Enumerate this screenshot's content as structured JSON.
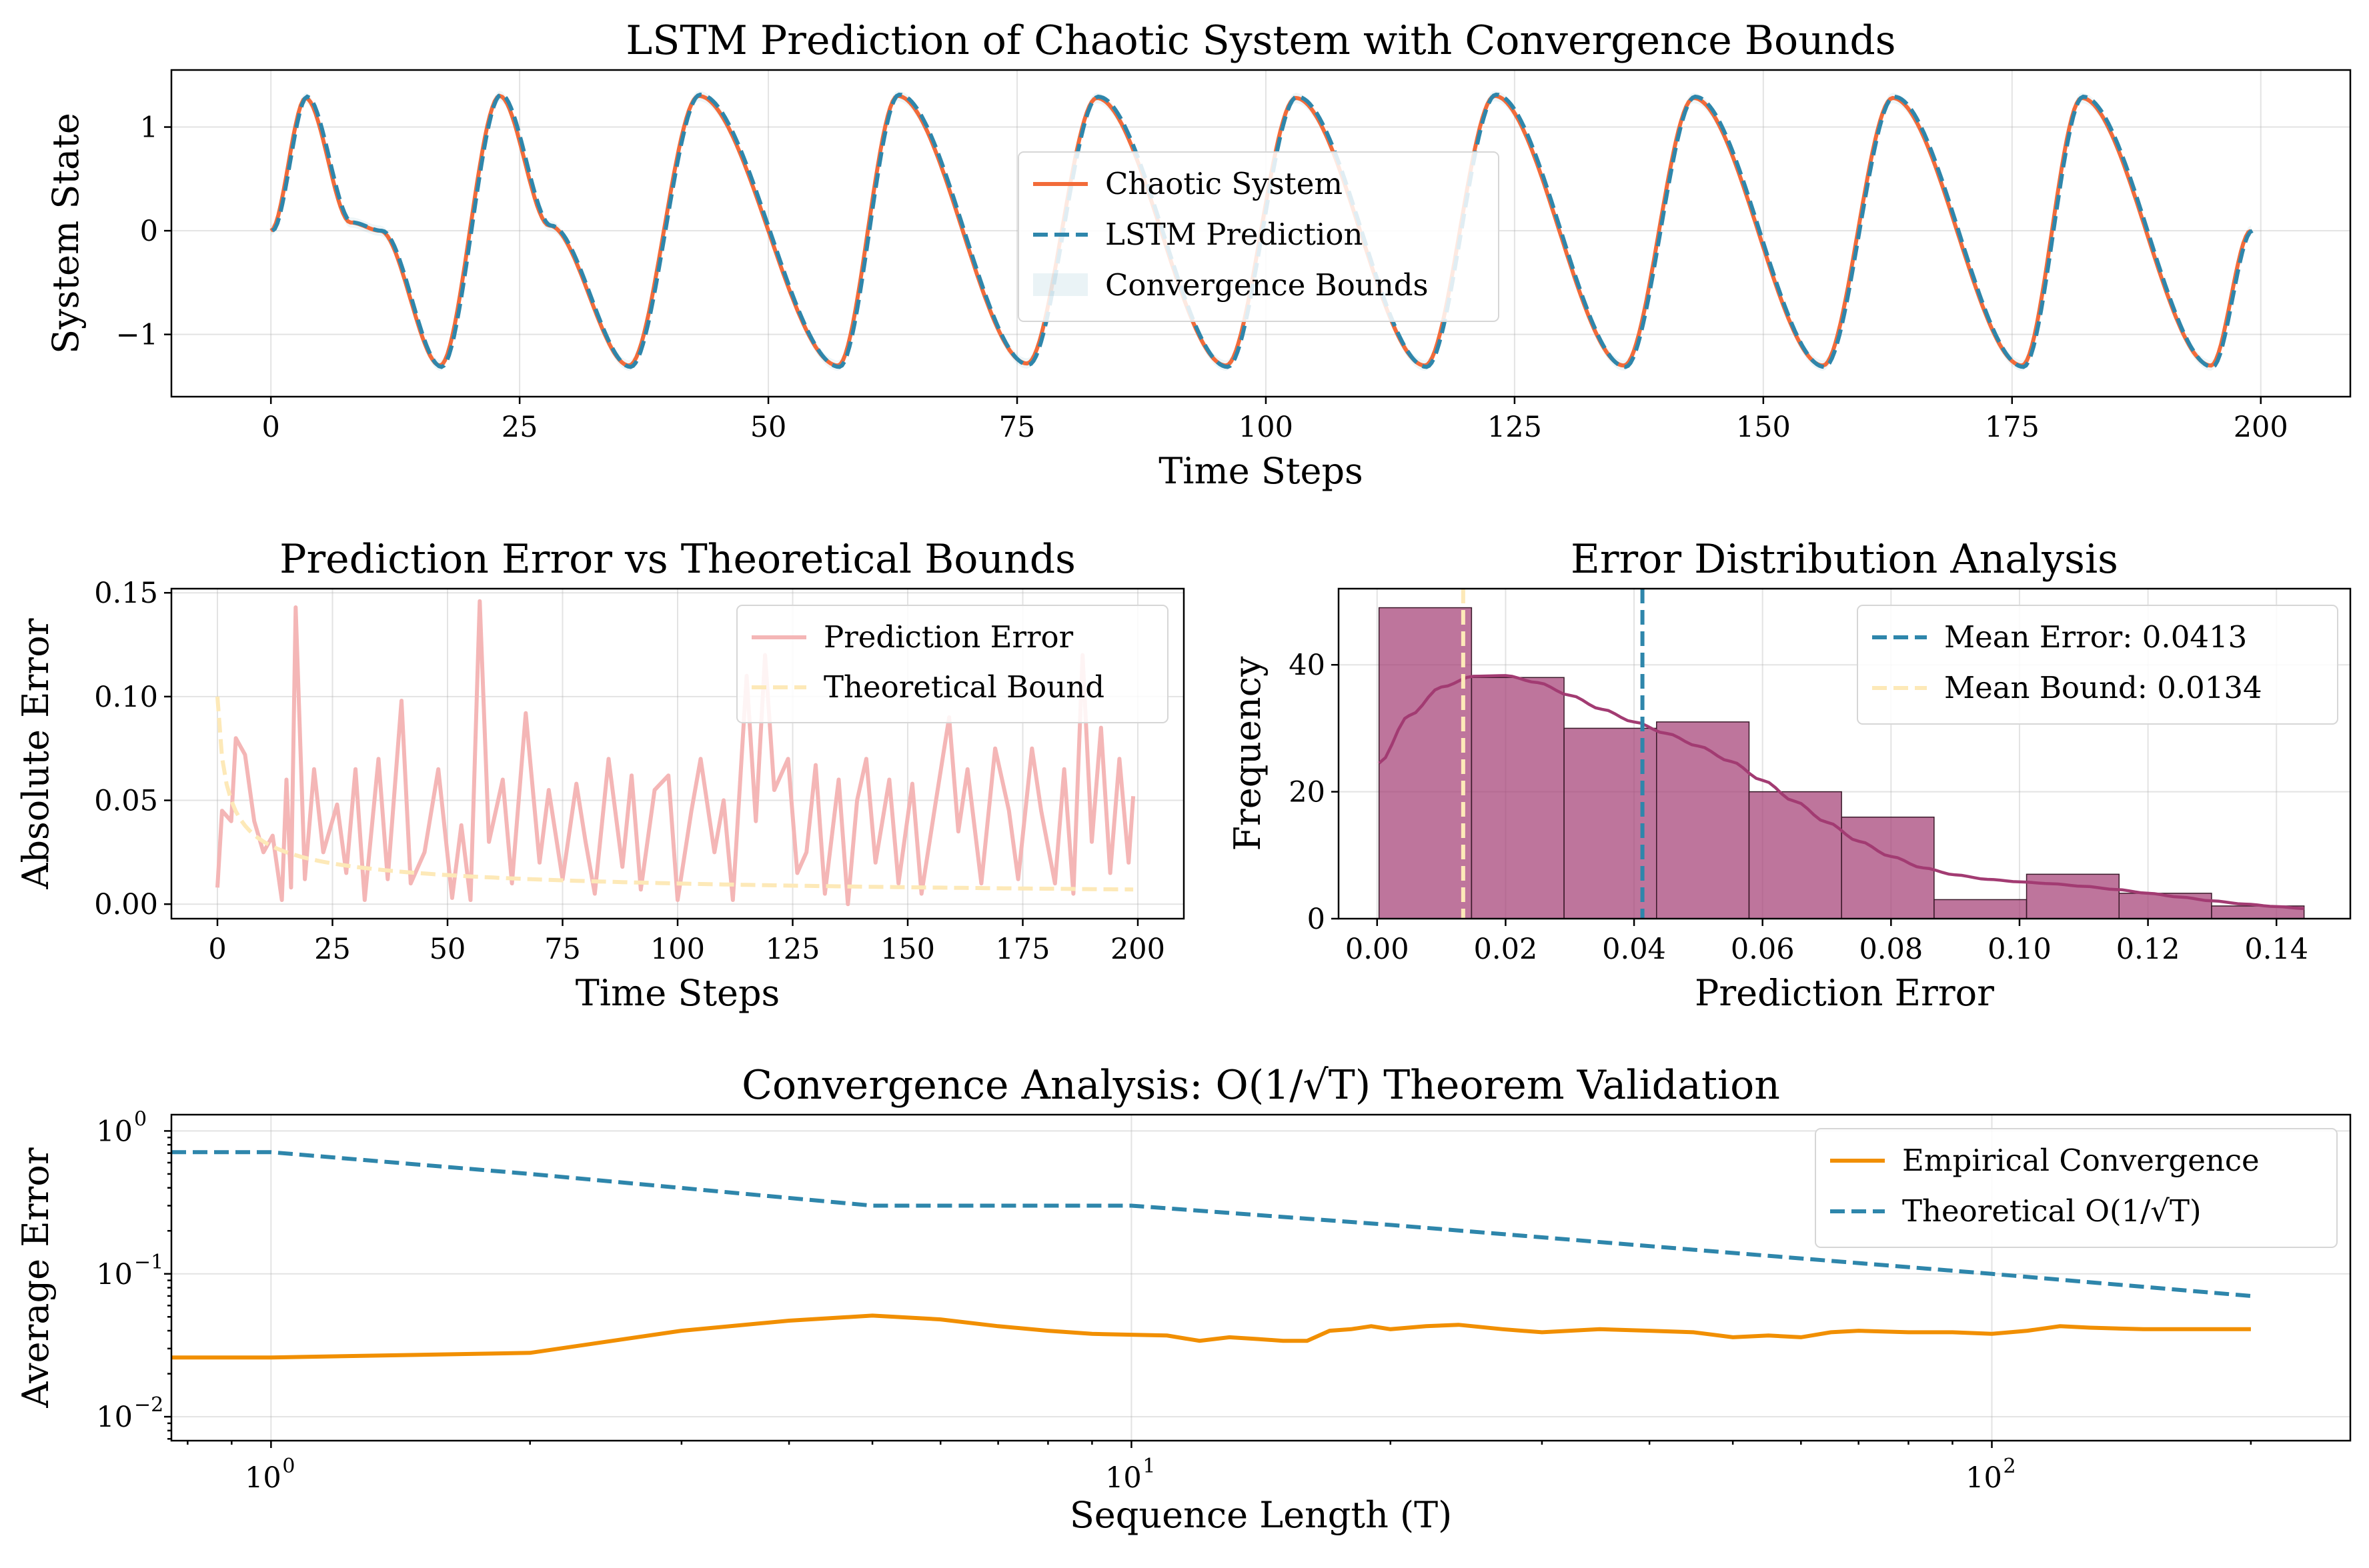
{
  "figure": {
    "background": "#ffffff"
  },
  "chart_data": [
    {
      "id": "top",
      "type": "line",
      "title": "LSTM Prediction of Chaotic System with Convergence Bounds",
      "xlabel": "Time Steps",
      "ylabel": "System State",
      "xlim": [
        -10,
        209
      ],
      "ylim": [
        -1.6,
        1.55
      ],
      "xticks": [
        0,
        25,
        50,
        75,
        100,
        125,
        150,
        175,
        200
      ],
      "yticks": [
        {
          "v": -1,
          "label": "−1"
        },
        {
          "v": 0,
          "label": "0"
        },
        {
          "v": 1,
          "label": "1"
        }
      ],
      "grid": true,
      "legend_position": "center-right",
      "series": [
        {
          "name": "Chaotic System",
          "color": "#f26b3a",
          "style": "solid",
          "n_points": 200,
          "description_of_shape": "periodic oscillation, period ~19.8 steps, peaks ~1.25-1.3, troughs ~-1.3, short plateau near 0 after each peak",
          "key_points": [
            [
              0,
              0.0
            ],
            [
              3.5,
              1.28
            ],
            [
              8,
              0.08
            ],
            [
              11,
              0.0
            ],
            [
              17,
              -1.3
            ],
            [
              23,
              1.3
            ],
            [
              28,
              0.05
            ],
            [
              36,
              -1.3
            ],
            [
              43,
              1.3
            ],
            [
              57,
              -1.3
            ],
            [
              63,
              1.3
            ],
            [
              76,
              -1.28
            ],
            [
              83,
              1.28
            ],
            [
              96,
              -1.3
            ],
            [
              103,
              1.28
            ],
            [
              116,
              -1.3
            ],
            [
              123,
              1.3
            ],
            [
              136,
              -1.3
            ],
            [
              143,
              1.28
            ],
            [
              156,
              -1.3
            ],
            [
              163,
              1.28
            ],
            [
              176,
              -1.3
            ],
            [
              182,
              1.28
            ],
            [
              195,
              -1.3
            ],
            [
              199,
              0.0
            ]
          ]
        },
        {
          "name": "LSTM Prediction",
          "color": "#2e86ab",
          "style": "dashed"
        },
        {
          "name": "Convergence Bounds",
          "color": "#2e86ab",
          "style": "band",
          "opacity": 0.08
        }
      ]
    },
    {
      "id": "middle-left",
      "type": "line",
      "title": "Prediction Error vs Theoretical Bounds",
      "xlabel": "Time Steps",
      "ylabel": "Absolute Error",
      "xlim": [
        -10,
        210
      ],
      "ylim": [
        -0.007,
        0.152
      ],
      "xticks": [
        0,
        25,
        50,
        75,
        100,
        125,
        150,
        175,
        200
      ],
      "yticks": [
        {
          "v": 0.0,
          "label": "0.00"
        },
        {
          "v": 0.05,
          "label": "0.05"
        },
        {
          "v": 0.1,
          "label": "0.10"
        },
        {
          "v": 0.15,
          "label": "0.15"
        }
      ],
      "grid": true,
      "legend_position": "upper right",
      "series": [
        {
          "name": "Prediction Error",
          "color": "#f4b6b6",
          "style": "solid",
          "key_points": [
            [
              0,
              0.008
            ],
            [
              1,
              0.045
            ],
            [
              3,
              0.04
            ],
            [
              4,
              0.08
            ],
            [
              6,
              0.072
            ],
            [
              8,
              0.04
            ],
            [
              10,
              0.025
            ],
            [
              12,
              0.033
            ],
            [
              14,
              0.002
            ],
            [
              15,
              0.06
            ],
            [
              16,
              0.008
            ],
            [
              17,
              0.143
            ],
            [
              19,
              0.012
            ],
            [
              21,
              0.065
            ],
            [
              23,
              0.025
            ],
            [
              26,
              0.048
            ],
            [
              28,
              0.015
            ],
            [
              30,
              0.065
            ],
            [
              32,
              0.002
            ],
            [
              35,
              0.07
            ],
            [
              37,
              0.012
            ],
            [
              40,
              0.098
            ],
            [
              42,
              0.01
            ],
            [
              45,
              0.025
            ],
            [
              48,
              0.065
            ],
            [
              51,
              0.003
            ],
            [
              53,
              0.038
            ],
            [
              55,
              0.002
            ],
            [
              57,
              0.146
            ],
            [
              59,
              0.03
            ],
            [
              62,
              0.06
            ],
            [
              64,
              0.01
            ],
            [
              67,
              0.092
            ],
            [
              70,
              0.02
            ],
            [
              72,
              0.055
            ],
            [
              75,
              0.012
            ],
            [
              78,
              0.058
            ],
            [
              80,
              0.03
            ],
            [
              82,
              0.005
            ],
            [
              85,
              0.07
            ],
            [
              88,
              0.018
            ],
            [
              90,
              0.062
            ],
            [
              92,
              0.007
            ],
            [
              95,
              0.055
            ],
            [
              98,
              0.062
            ],
            [
              100,
              0.002
            ],
            [
              103,
              0.045
            ],
            [
              105,
              0.07
            ],
            [
              108,
              0.025
            ],
            [
              110,
              0.05
            ],
            [
              112,
              0.002
            ],
            [
              115,
              0.11
            ],
            [
              117,
              0.04
            ],
            [
              119,
              0.12
            ],
            [
              121,
              0.055
            ],
            [
              124,
              0.07
            ],
            [
              126,
              0.015
            ],
            [
              128,
              0.025
            ],
            [
              130,
              0.067
            ],
            [
              132,
              0.005
            ],
            [
              135,
              0.06
            ],
            [
              137,
              0.0
            ],
            [
              139,
              0.05
            ],
            [
              141,
              0.07
            ],
            [
              143,
              0.02
            ],
            [
              146,
              0.06
            ],
            [
              148,
              0.01
            ],
            [
              151,
              0.058
            ],
            [
              153,
              0.005
            ],
            [
              156,
              0.048
            ],
            [
              159,
              0.09
            ],
            [
              161,
              0.035
            ],
            [
              163,
              0.065
            ],
            [
              166,
              0.01
            ],
            [
              169,
              0.075
            ],
            [
              172,
              0.045
            ],
            [
              174,
              0.012
            ],
            [
              177,
              0.075
            ],
            [
              179,
              0.045
            ],
            [
              182,
              0.01
            ],
            [
              184,
              0.065
            ],
            [
              186,
              0.005
            ],
            [
              188,
              0.12
            ],
            [
              190,
              0.03
            ],
            [
              192,
              0.085
            ],
            [
              194,
              0.015
            ],
            [
              196,
              0.07
            ],
            [
              198,
              0.02
            ],
            [
              199,
              0.052
            ]
          ]
        },
        {
          "name": "Theoretical Bound",
          "color": "#fde9b8",
          "style": "dashed",
          "formula": "0.1/sqrt(t+1)"
        }
      ]
    },
    {
      "id": "middle-right",
      "type": "bar",
      "title": "Error Distribution Analysis",
      "xlabel": "Prediction Error",
      "ylabel": "Frequency",
      "xlim": [
        -0.006,
        0.1515
      ],
      "ylim": [
        0,
        52
      ],
      "xticks": [
        {
          "v": 0.0,
          "label": "0.00"
        },
        {
          "v": 0.02,
          "label": "0.02"
        },
        {
          "v": 0.04,
          "label": "0.04"
        },
        {
          "v": 0.06,
          "label": "0.06"
        },
        {
          "v": 0.08,
          "label": "0.08"
        },
        {
          "v": 0.1,
          "label": "0.10"
        },
        {
          "v": 0.12,
          "label": "0.12"
        },
        {
          "v": 0.14,
          "label": "0.14"
        }
      ],
      "yticks": [
        {
          "v": 0,
          "label": "0"
        },
        {
          "v": 20,
          "label": "20"
        },
        {
          "v": 40,
          "label": "40"
        }
      ],
      "grid": true,
      "legend_position": "upper right",
      "bins": [
        0.0003,
        0.0147,
        0.0291,
        0.0435,
        0.0579,
        0.0723,
        0.0867,
        0.1011,
        0.1155,
        0.1299,
        0.1443
      ],
      "counts": [
        49,
        38,
        30,
        31,
        20,
        16,
        3,
        7,
        4,
        2
      ],
      "bar_color": "#a23b72",
      "kde": [
        [
          0.0003,
          24.5
        ],
        [
          0.005,
          32
        ],
        [
          0.01,
          36.5
        ],
        [
          0.015,
          38.2
        ],
        [
          0.02,
          38.3
        ],
        [
          0.025,
          37.2
        ],
        [
          0.03,
          35.2
        ],
        [
          0.035,
          33
        ],
        [
          0.04,
          31
        ],
        [
          0.045,
          29.2
        ],
        [
          0.05,
          27.2
        ],
        [
          0.055,
          24.8
        ],
        [
          0.06,
          21.8
        ],
        [
          0.065,
          18.5
        ],
        [
          0.07,
          15.2
        ],
        [
          0.075,
          12.2
        ],
        [
          0.08,
          9.8
        ],
        [
          0.085,
          8
        ],
        [
          0.09,
          6.9
        ],
        [
          0.095,
          6.2
        ],
        [
          0.1,
          5.8
        ],
        [
          0.105,
          5.5
        ],
        [
          0.11,
          5.1
        ],
        [
          0.115,
          4.6
        ],
        [
          0.12,
          4.0
        ],
        [
          0.125,
          3.4
        ],
        [
          0.13,
          2.8
        ],
        [
          0.135,
          2.3
        ],
        [
          0.14,
          1.9
        ],
        [
          0.1443,
          1.6
        ]
      ],
      "vlines": [
        {
          "name": "Mean Error: 0.0413",
          "x": 0.0413,
          "color": "#2e86ab",
          "style": "dashed"
        },
        {
          "name": "Mean Bound: 0.0134",
          "x": 0.0134,
          "color": "#fde9b8",
          "style": "dashed"
        }
      ]
    },
    {
      "id": "bottom",
      "type": "line",
      "title": "Convergence Analysis: O(1/√T) Theorem Validation",
      "xlabel": "Sequence Length (T)",
      "ylabel": "Average Error",
      "xscale": "log",
      "yscale": "log",
      "xlim": [
        0.766,
        261
      ],
      "ylim": [
        0.0068,
        1.3
      ],
      "xticks": [
        {
          "v": 1,
          "base": "10",
          "exp": "0"
        },
        {
          "v": 10,
          "base": "10",
          "exp": "1"
        },
        {
          "v": 100,
          "base": "10",
          "exp": "2"
        }
      ],
      "yticks": [
        {
          "v": 0.01,
          "base": "10",
          "exp": "−2"
        },
        {
          "v": 0.1,
          "base": "10",
          "exp": "−1"
        },
        {
          "v": 1,
          "base": "10",
          "exp": "0"
        }
      ],
      "grid": true,
      "legend_position": "upper right",
      "series": [
        {
          "name": "Empirical Convergence",
          "color": "#f18f01",
          "style": "solid",
          "key_points": [
            [
              0.766,
              0.026
            ],
            [
              1,
              0.026
            ],
            [
              2,
              0.028
            ],
            [
              3,
              0.04
            ],
            [
              4,
              0.047
            ],
            [
              5,
              0.051
            ],
            [
              6,
              0.048
            ],
            [
              7,
              0.043
            ],
            [
              8,
              0.04
            ],
            [
              9,
              0.038
            ],
            [
              10,
              0.0375
            ],
            [
              11,
              0.037
            ],
            [
              12,
              0.034
            ],
            [
              13,
              0.036
            ],
            [
              14,
              0.035
            ],
            [
              15,
              0.034
            ],
            [
              16,
              0.034
            ],
            [
              17,
              0.04
            ],
            [
              18,
              0.041
            ],
            [
              19,
              0.043
            ],
            [
              20,
              0.041
            ],
            [
              22,
              0.043
            ],
            [
              24,
              0.044
            ],
            [
              27,
              0.041
            ],
            [
              30,
              0.039
            ],
            [
              35,
              0.041
            ],
            [
              40,
              0.04
            ],
            [
              45,
              0.039
            ],
            [
              50,
              0.036
            ],
            [
              55,
              0.037
            ],
            [
              60,
              0.036
            ],
            [
              65,
              0.039
            ],
            [
              70,
              0.04
            ],
            [
              80,
              0.039
            ],
            [
              90,
              0.039
            ],
            [
              100,
              0.038
            ],
            [
              110,
              0.04
            ],
            [
              120,
              0.043
            ],
            [
              130,
              0.042
            ],
            [
              150,
              0.041
            ],
            [
              170,
              0.041
            ],
            [
              200,
              0.041
            ]
          ]
        },
        {
          "name": "Theoretical O(1/√T)",
          "color": "#2e86ab",
          "style": "dashed",
          "key_points": [
            [
              0.766,
              0.71
            ],
            [
              1,
              0.71
            ],
            [
              2,
              0.5
            ],
            [
              5,
              0.3
            ],
            [
              10,
              0.3
            ],
            [
              20,
              0.22
            ],
            [
              50,
              0.14
            ],
            [
              100,
              0.1
            ],
            [
              200,
              0.07
            ]
          ]
        }
      ]
    }
  ]
}
